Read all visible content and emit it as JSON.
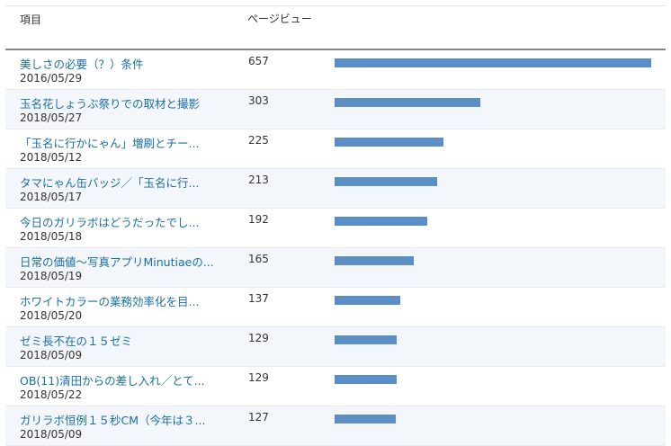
{
  "table": {
    "header": {
      "item_label": "項目",
      "views_label": "ページビュー"
    },
    "max_views": 657,
    "bar_color": "#5b8ec6",
    "link_color": "#1a6ea6",
    "rows": [
      {
        "title": "美しさの必要（？）条件",
        "date": "2016/05/29",
        "views": 657
      },
      {
        "title": "玉名花しょうぶ祭りでの取材と撮影",
        "date": "2018/05/27",
        "views": 303
      },
      {
        "title": "「玉名に行かにゃん」増刷とチー...",
        "date": "2018/05/12",
        "views": 225
      },
      {
        "title": "タマにゃん缶バッジ／「玉名に行...",
        "date": "2018/05/17",
        "views": 213
      },
      {
        "title": "今日のガリラボはどうだったでし...",
        "date": "2018/05/18",
        "views": 192
      },
      {
        "title": "日常の価値～写真アプリMinutiaeの...",
        "date": "2018/05/19",
        "views": 165
      },
      {
        "title": "ホワイトカラーの業務効率化を目...",
        "date": "2018/05/20",
        "views": 137
      },
      {
        "title": "ゼミ長不在の１５ゼミ",
        "date": "2018/05/09",
        "views": 129
      },
      {
        "title": "OB(11)清田からの差し入れ／とて...",
        "date": "2018/05/22",
        "views": 129
      },
      {
        "title": "ガリラボ恒例１５秒CM（今年は３...",
        "date": "2018/05/09",
        "views": 127
      }
    ]
  }
}
